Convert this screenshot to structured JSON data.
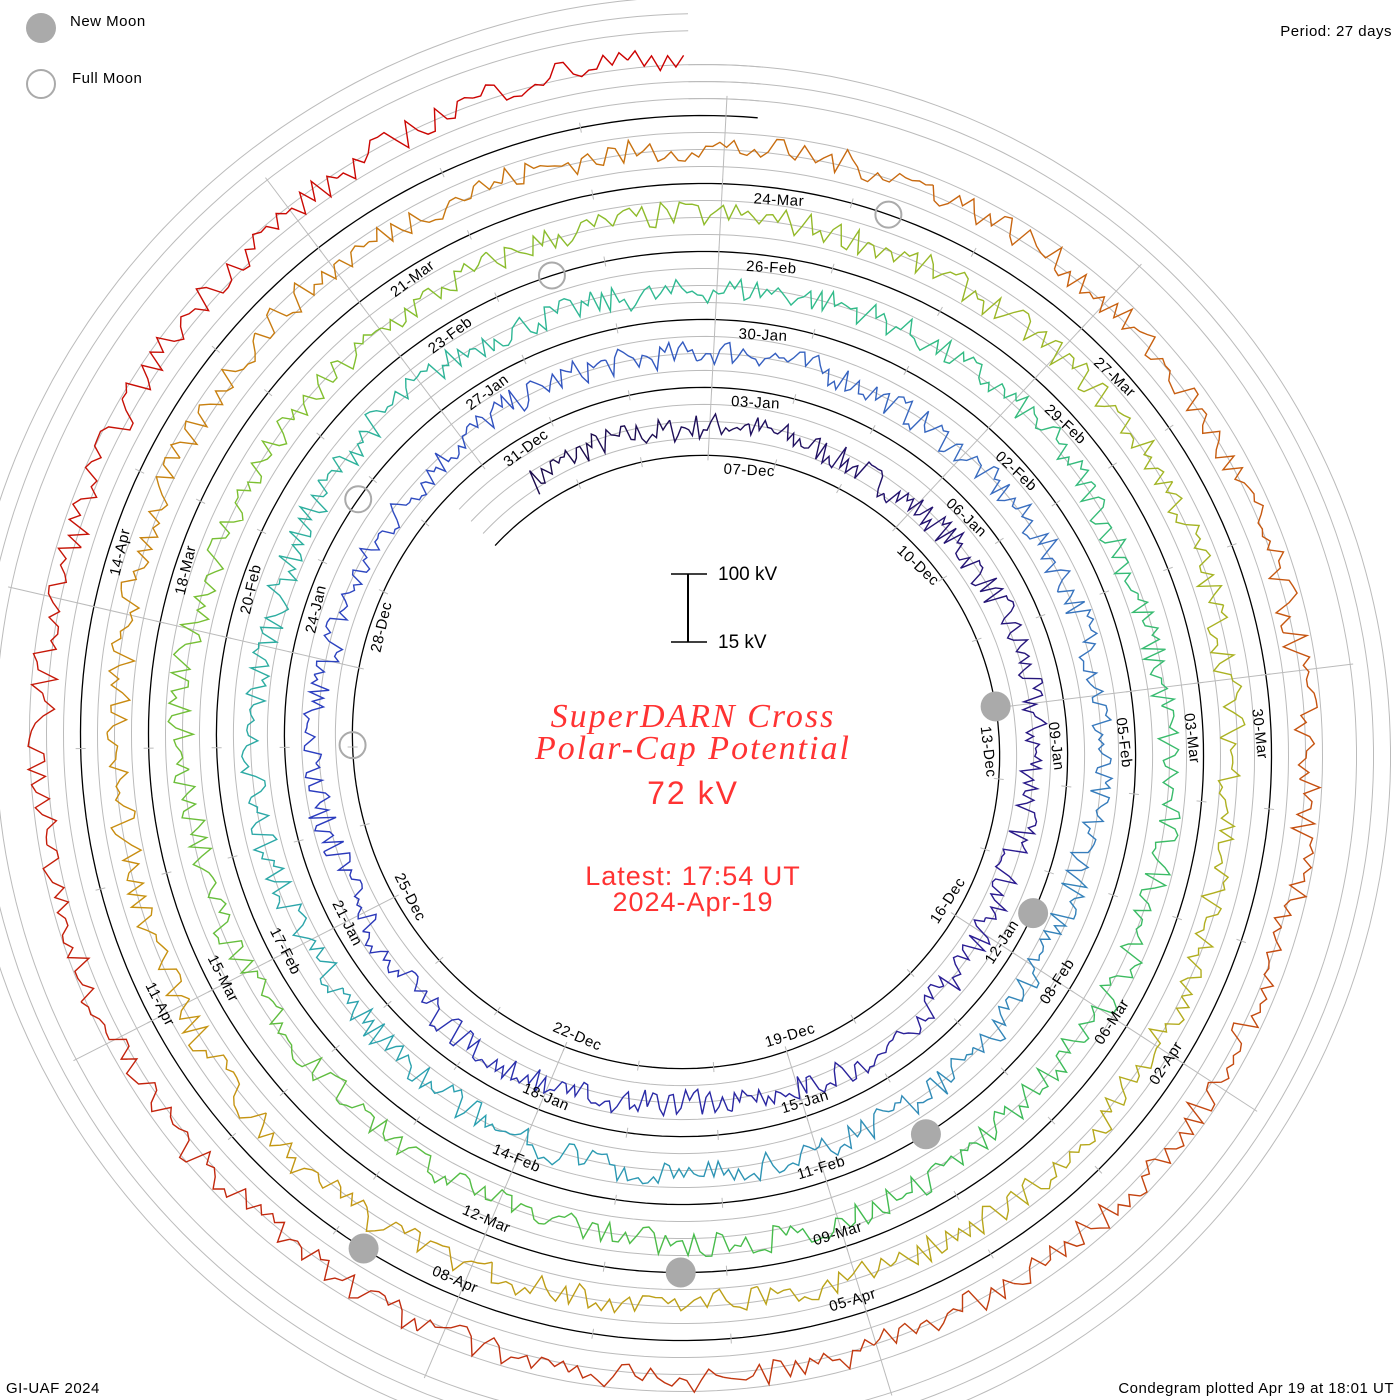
{
  "legend": {
    "new_moon": "New Moon",
    "full_moon": "Full Moon"
  },
  "period_label": "Period: 27 days",
  "footer": {
    "left": "GI-UAF 2024",
    "right": "Condegram plotted Apr 19 at 18:01 UT"
  },
  "scale_bar": {
    "top_label": "100 kV",
    "bottom_label": "15 kV"
  },
  "title": {
    "line1": "SuperDARN Cross",
    "line2": "Polar-Cap Potential",
    "current_value": "72 kV",
    "latest_line1": "Latest: 17:54 UT",
    "latest_line2": "2024-Apr-19"
  },
  "colors": {
    "title": "#ff3333",
    "moon": "#aaaaaa",
    "grid": "#bbbbbb",
    "baseline": "#000000",
    "series_palette": [
      "#1a0a45",
      "#2a1a90",
      "#2a3cc0",
      "#3a70c0",
      "#2aa0b0",
      "#30bb90",
      "#40bb50",
      "#80c030",
      "#b0b020",
      "#c89010",
      "#c86010",
      "#c03010",
      "#cc0000"
    ]
  },
  "chart_data": {
    "type": "condegram-spiral",
    "title": "SuperDARN Cross Polar-Cap Potential",
    "unit": "kV",
    "period_days": 27,
    "scale_kV": [
      15,
      100
    ],
    "start": "2023-12-04T10:00Z",
    "end": "2024-04-19T17:54Z",
    "reference_date": "2023-12-07T00:00Z",
    "daily_values_kV": [
      45,
      52,
      48,
      55,
      50,
      47,
      53,
      58,
      62,
      60,
      55,
      50,
      57,
      63,
      66,
      60,
      58,
      64,
      70,
      66,
      62,
      58,
      66,
      60,
      55,
      50,
      52,
      57,
      60,
      56,
      62,
      58,
      54,
      55,
      60,
      63,
      58,
      52,
      50,
      55,
      60,
      57,
      62,
      66,
      60,
      55,
      52,
      48,
      54,
      58,
      52,
      50,
      55,
      60,
      58,
      52,
      48,
      55,
      60,
      58,
      62,
      55,
      50,
      56,
      61,
      64,
      58,
      60,
      66,
      70,
      62,
      58,
      55,
      50,
      48,
      52,
      56,
      60,
      58,
      55,
      52,
      55,
      58,
      62,
      60,
      57,
      55,
      58,
      60,
      55,
      52,
      50,
      56,
      60,
      62,
      58,
      54,
      52,
      56,
      62,
      66,
      60,
      58,
      55,
      52,
      60,
      64,
      70,
      66,
      62,
      58,
      60,
      64,
      62,
      58,
      55,
      57,
      60,
      62,
      58,
      64,
      60,
      58,
      62,
      66,
      60,
      64,
      62,
      66,
      70,
      68,
      64,
      62,
      66,
      70,
      72,
      85,
      90,
      88
    ],
    "date_labels": [
      "07-Dec",
      "10-Dec",
      "13-Dec",
      "16-Dec",
      "19-Dec",
      "22-Dec",
      "25-Dec",
      "28-Dec",
      "31-Dec",
      "03-Jan",
      "06-Jan",
      "09-Jan",
      "12-Jan",
      "15-Jan",
      "18-Jan",
      "21-Jan",
      "24-Jan",
      "27-Jan",
      "30-Jan",
      "02-Feb",
      "05-Feb",
      "08-Feb",
      "11-Feb",
      "14-Feb",
      "17-Feb",
      "20-Feb",
      "23-Feb",
      "26-Feb",
      "29-Feb",
      "03-Mar",
      "06-Mar",
      "09-Mar",
      "12-Mar",
      "15-Mar",
      "18-Mar",
      "21-Mar",
      "24-Mar",
      "27-Mar",
      "30-Mar",
      "02-Apr",
      "05-Apr",
      "08-Apr",
      "11-Apr",
      "14-Apr"
    ],
    "new_moons": [
      "2023-12-12T23:32Z",
      "2024-01-11T11:57Z",
      "2024-02-09T22:59Z",
      "2024-03-10T09:00Z",
      "2024-04-08T18:21Z"
    ],
    "full_moons": [
      "2023-12-27T00:33Z",
      "2024-01-25T17:54Z",
      "2024-02-24T12:30Z",
      "2024-03-25T07:00Z"
    ]
  }
}
